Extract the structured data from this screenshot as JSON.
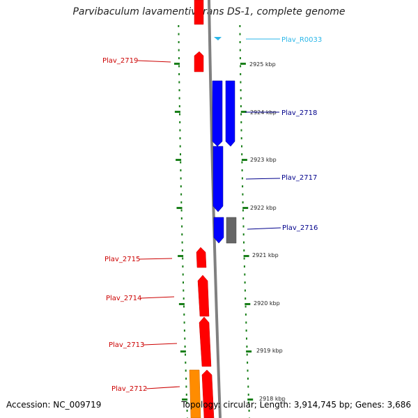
{
  "title": "Parvibaculum lavamentivorans DS-1, complete genome",
  "footer": {
    "accession": "Accession: NC_009719",
    "topology": "Topology: circular; Length: 3,914,745 bp; Genes: 3,686"
  },
  "colors": {
    "gene_red": "#ff0000",
    "gene_blue": "#0000ff",
    "gene_orange": "#ff8c00",
    "gene_gray": "#666666",
    "rna_cyan": "#29b6e8",
    "backbone": "#808080",
    "tick_green": "#1a7f1a"
  },
  "ticks": [
    {
      "label": "2925 kbp"
    },
    {
      "label": "2924 kbp"
    },
    {
      "label": "2923 kbp"
    },
    {
      "label": "2922 kbp"
    },
    {
      "label": "2921 kbp"
    },
    {
      "label": "2920 kbp"
    },
    {
      "label": "2919 kbp"
    },
    {
      "label": "2918 kbp"
    }
  ],
  "gene_labels": [
    {
      "text": "Plav_R0033",
      "color": "#29b6e8"
    },
    {
      "text": "Plav_2719",
      "color": "#cc0000"
    },
    {
      "text": "Plav_2718",
      "color": "#00008b"
    },
    {
      "text": "Plav_2717",
      "color": "#00008b"
    },
    {
      "text": "Plav_2716",
      "color": "#00008b"
    },
    {
      "text": "Plav_2715",
      "color": "#cc0000"
    },
    {
      "text": "Plav_2714",
      "color": "#cc0000"
    },
    {
      "text": "Plav_2713",
      "color": "#cc0000"
    },
    {
      "text": "Plav_2712",
      "color": "#cc0000"
    }
  ]
}
